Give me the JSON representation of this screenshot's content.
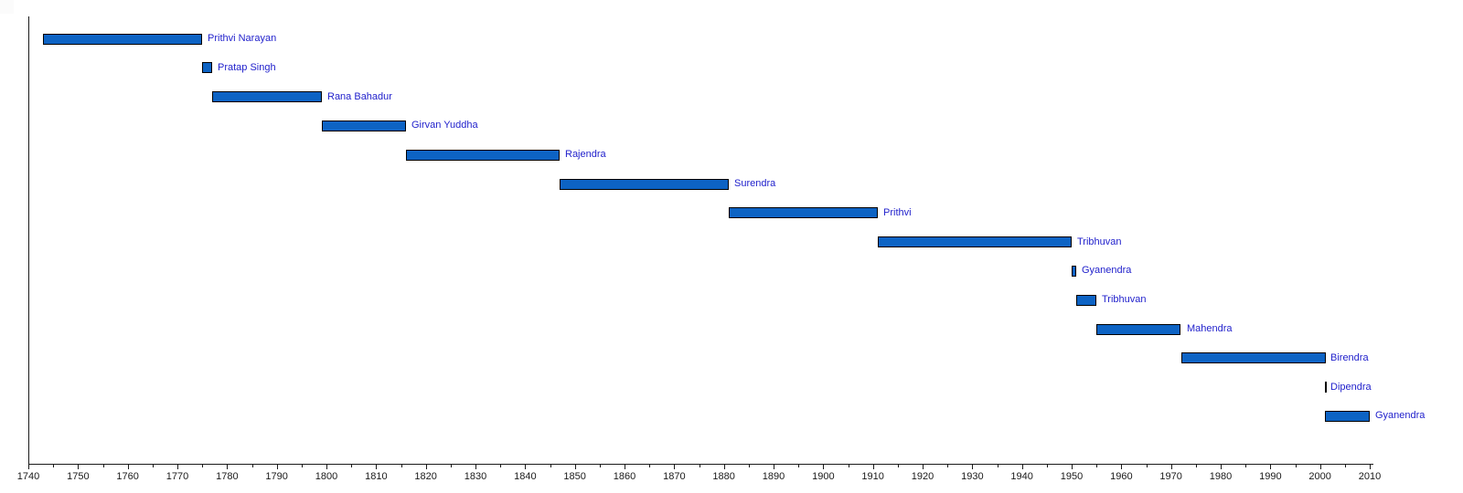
{
  "chart_data": {
    "type": "gantt",
    "title": "",
    "xlabel": "",
    "ylabel": "",
    "grid": false,
    "legend": false,
    "x_axis": {
      "min": 1740,
      "max": 2010,
      "major_tick_step": 10,
      "minor_tick_step": 5,
      "tick_labels": [
        "1740",
        "1750",
        "1760",
        "1770",
        "1780",
        "1790",
        "1800",
        "1810",
        "1820",
        "1830",
        "1840",
        "1850",
        "1860",
        "1870",
        "1880",
        "1890",
        "1900",
        "1910",
        "1920",
        "1930",
        "1940",
        "1950",
        "1960",
        "1970",
        "1980",
        "1990",
        "2000",
        "2010"
      ]
    },
    "bars": [
      {
        "label": "Prithvi Narayan",
        "start": 1743,
        "end": 1775
      },
      {
        "label": "Pratap Singh",
        "start": 1775,
        "end": 1777
      },
      {
        "label": "Rana Bahadur",
        "start": 1777,
        "end": 1799
      },
      {
        "label": "Girvan Yuddha",
        "start": 1799,
        "end": 1816
      },
      {
        "label": "Rajendra",
        "start": 1816,
        "end": 1847
      },
      {
        "label": "Surendra",
        "start": 1847,
        "end": 1881
      },
      {
        "label": "Prithvi",
        "start": 1881,
        "end": 1911
      },
      {
        "label": "Tribhuvan",
        "start": 1911,
        "end": 1950
      },
      {
        "label": "Gyanendra",
        "start": 1950,
        "end": 1951
      },
      {
        "label": "Tribhuvan",
        "start": 1951,
        "end": 1955
      },
      {
        "label": "Mahendra",
        "start": 1955,
        "end": 1972
      },
      {
        "label": "Birendra",
        "start": 1972,
        "end": 2001
      },
      {
        "label": "Dipendra",
        "start": 2001,
        "end": 2001
      },
      {
        "label": "Gyanendra",
        "start": 2001,
        "end": 2010
      }
    ],
    "colors": {
      "bar_fill": "#0d63c4",
      "bar_border": "#000000",
      "bar_label_text": "#2222cc",
      "axis": "#1a1a1a",
      "tick_label_text": "#1a1a1a"
    }
  }
}
